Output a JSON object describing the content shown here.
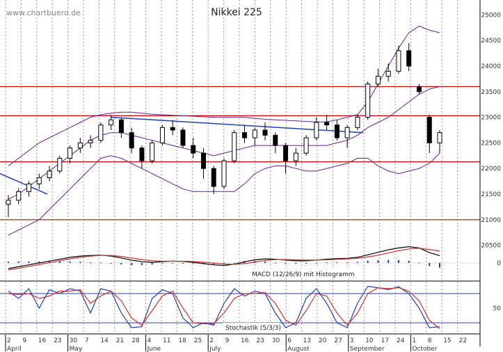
{
  "watermark": "www.chartbuero.de",
  "colors": {
    "resistance": "#cc0000",
    "bollinger": "#6a1b9a",
    "trend": "#1f3fb5",
    "macd": "#000000",
    "signal": "#d32f2f",
    "hist": "#1f3fb5",
    "stoch_k": "#1f3fb5",
    "stoch_d": "#d32f2f",
    "grid": "#9a9a9a",
    "candle": "#000000"
  },
  "chart_data": [
    {
      "type": "candlestick",
      "title": "Nikkei 225",
      "ylim": [
        20400,
        25100
      ],
      "y_ticks": [
        25000,
        24500,
        24000,
        23500,
        23000,
        22500,
        22000,
        21500,
        21000,
        20500
      ],
      "x_ticks": [
        "2",
        "9",
        "16",
        "23",
        "30",
        "7",
        "14",
        "21",
        "28",
        "4",
        "11",
        "18",
        "25",
        "2",
        "9",
        "16",
        "23",
        "30",
        "6",
        "13",
        "20",
        "27",
        "3",
        "10",
        "17",
        "24",
        "1",
        "8",
        "15",
        "22"
      ],
      "months": [
        "April",
        "May",
        "June",
        "July",
        "August",
        "September",
        "October"
      ],
      "horizontal_lines": [
        23600,
        23030,
        22130,
        21000
      ],
      "series": [
        {
          "values": [
            [
              21300,
              21480,
              21050,
              21380
            ],
            [
              21380,
              21620,
              21300,
              21550
            ],
            [
              21550,
              21750,
              21450,
              21700
            ],
            [
              21700,
              21900,
              21600,
              21820
            ],
            [
              21820,
              22050,
              21750,
              21950
            ],
            [
              21950,
              22250,
              21900,
              22200
            ],
            [
              22200,
              22450,
              22100,
              22400
            ],
            [
              22400,
              22600,
              22300,
              22500
            ],
            [
              22500,
              22650,
              22400,
              22550
            ],
            [
              22550,
              22900,
              22500,
              22850
            ],
            [
              22850,
              23050,
              22750,
              22950
            ],
            [
              22950,
              23000,
              22600,
              22700
            ],
            [
              22700,
              22800,
              22300,
              22400
            ],
            [
              22400,
              22450,
              22000,
              22150
            ],
            [
              22150,
              22550,
              22100,
              22500
            ],
            [
              22500,
              22850,
              22450,
              22800
            ],
            [
              22800,
              22950,
              22650,
              22750
            ],
            [
              22750,
              22800,
              22400,
              22450
            ],
            [
              22450,
              22600,
              22200,
              22300
            ],
            [
              22300,
              22400,
              21800,
              22000
            ],
            [
              22000,
              22050,
              21500,
              21650
            ],
            [
              21650,
              22200,
              21600,
              22150
            ],
            [
              22150,
              22750,
              22100,
              22700
            ],
            [
              22700,
              22850,
              22500,
              22600
            ],
            [
              22600,
              22800,
              22450,
              22750
            ],
            [
              22750,
              22900,
              22550,
              22650
            ],
            [
              22650,
              22700,
              22300,
              22450
            ],
            [
              22450,
              22500,
              21900,
              22150
            ],
            [
              22150,
              22400,
              22050,
              22300
            ],
            [
              22300,
              22650,
              22250,
              22600
            ],
            [
              22600,
              23000,
              22550,
              22900
            ],
            [
              22900,
              23050,
              22750,
              22850
            ],
            [
              22850,
              22950,
              22550,
              22600
            ],
            [
              22600,
              22850,
              22400,
              22800
            ],
            [
              22800,
              23050,
              22750,
              23000
            ],
            [
              23000,
              23700,
              22950,
              23650
            ],
            [
              23650,
              23950,
              23600,
              23800
            ],
            [
              23800,
              24050,
              23700,
              23900
            ],
            [
              23900,
              24400,
              23850,
              24300
            ],
            [
              24300,
              24450,
              23900,
              24000
            ],
            [
              23600,
              23650,
              23450,
              23500
            ],
            [
              23000,
              23050,
              22300,
              22500
            ],
            [
              22500,
              22750,
              22300,
              22700
            ]
          ]
        },
        {
          "name": "Bollinger upper",
          "values": [
            22050,
            22200,
            22350,
            22500,
            22600,
            22700,
            22800,
            22900,
            23000,
            23050,
            23080,
            23100,
            23100,
            23080,
            23060,
            23050,
            23040,
            23030,
            23020,
            23010,
            23000,
            23000,
            23000,
            23000,
            22980,
            22960,
            22950,
            22940,
            22930,
            22920,
            22910,
            22910,
            22950,
            23000,
            23050,
            23300,
            23650,
            24000,
            24350,
            24650,
            24780,
            24700,
            24650
          ]
        },
        {
          "name": "Bollinger lower",
          "values": [
            20700,
            20800,
            20900,
            21000,
            21200,
            21400,
            21600,
            21800,
            22000,
            22200,
            22250,
            22200,
            22100,
            22000,
            21900,
            21800,
            21700,
            21600,
            21550,
            21550,
            21550,
            21550,
            21550,
            21700,
            21900,
            22000,
            22050,
            22050,
            22000,
            21950,
            21950,
            22000,
            22050,
            22100,
            22200,
            22200,
            22050,
            21950,
            21900,
            21950,
            22000,
            22100,
            22300
          ]
        },
        {
          "name": "Bollinger middle",
          "values": [
            21400,
            21500,
            21650,
            21800,
            21950,
            22100,
            22250,
            22400,
            22550,
            22650,
            22700,
            22700,
            22650,
            22600,
            22550,
            22500,
            22450,
            22400,
            22350,
            22300,
            22250,
            22300,
            22350,
            22400,
            22450,
            22450,
            22450,
            22450,
            22450,
            22450,
            22450,
            22450,
            22500,
            22550,
            22650,
            22800,
            22900,
            23000,
            23150,
            23300,
            23450,
            23550,
            23600
          ]
        },
        {
          "name": "Trend",
          "values": [
            [
              21900,
              21500
            ],
            [
              23000,
              22700
            ]
          ]
        }
      ]
    },
    {
      "type": "line",
      "annotation": "MACD (12/26/9) mit Histogramm",
      "y_ticks": [
        0
      ],
      "series": [
        {
          "name": "MACD",
          "values": [
            -180,
            -120,
            -60,
            0,
            60,
            120,
            180,
            220,
            240,
            250,
            220,
            160,
            90,
            40,
            20,
            40,
            60,
            50,
            20,
            -20,
            -60,
            -80,
            -40,
            40,
            100,
            130,
            120,
            90,
            70,
            70,
            90,
            120,
            140,
            150,
            180,
            260,
            340,
            420,
            480,
            520,
            480,
            330,
            230
          ]
        },
        {
          "name": "Signal",
          "values": [
            -220,
            -170,
            -110,
            -50,
            10,
            70,
            130,
            180,
            220,
            240,
            240,
            210,
            160,
            110,
            70,
            55,
            55,
            55,
            45,
            25,
            -5,
            -35,
            -45,
            -20,
            30,
            80,
            110,
            110,
            100,
            90,
            90,
            100,
            115,
            130,
            150,
            190,
            250,
            320,
            390,
            450,
            470,
            430,
            380
          ]
        },
        {
          "name": "Histogram",
          "values": [
            40,
            50,
            50,
            50,
            50,
            50,
            50,
            40,
            20,
            10,
            -20,
            -50,
            -70,
            -70,
            -50,
            -15,
            5,
            -5,
            -25,
            -45,
            -55,
            -45,
            5,
            60,
            70,
            50,
            10,
            -20,
            -30,
            -20,
            0,
            20,
            25,
            20,
            30,
            70,
            90,
            100,
            90,
            70,
            10,
            -100,
            -150
          ]
        }
      ]
    },
    {
      "type": "line",
      "annotation": "Stochastik (5/3/3)",
      "ylim": [
        0,
        100
      ],
      "y_ticks": [
        50
      ],
      "series": [
        {
          "name": "%K",
          "values": [
            85,
            70,
            90,
            50,
            88,
            80,
            90,
            85,
            40,
            90,
            85,
            40,
            10,
            12,
            70,
            88,
            80,
            30,
            10,
            20,
            15,
            60,
            90,
            75,
            85,
            80,
            40,
            10,
            20,
            70,
            90,
            60,
            20,
            10,
            60,
            95,
            92,
            88,
            94,
            80,
            50,
            10,
            12
          ]
        },
        {
          "name": "%D",
          "values": [
            80,
            78,
            80,
            70,
            75,
            85,
            85,
            88,
            60,
            75,
            85,
            65,
            30,
            15,
            45,
            75,
            85,
            50,
            20,
            18,
            18,
            40,
            70,
            80,
            80,
            82,
            60,
            25,
            15,
            45,
            80,
            75,
            40,
            15,
            40,
            80,
            92,
            90,
            92,
            85,
            65,
            25,
            8
          ]
        }
      ]
    }
  ]
}
